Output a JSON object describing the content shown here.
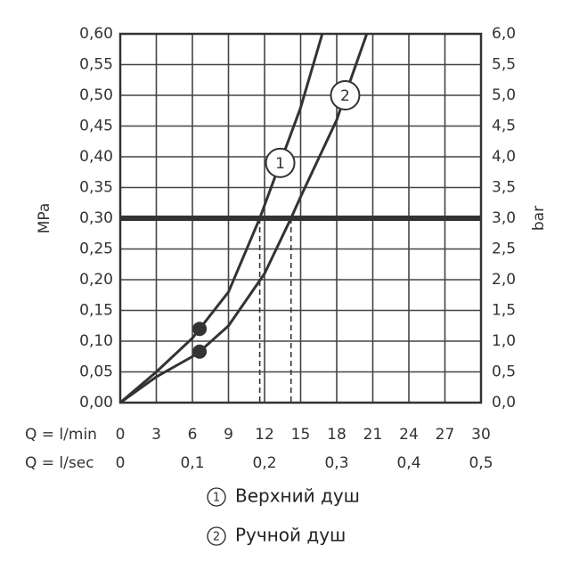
{
  "chart_data": {
    "type": "line",
    "ylabel": "MPa",
    "y2label": "bar",
    "xlabel": "Q = l/min",
    "x2label": "Q = l/sec",
    "xlim": [
      0,
      30
    ],
    "xticks": [
      0,
      3,
      6,
      9,
      12,
      15,
      18,
      21,
      24,
      27,
      30
    ],
    "x2lim": [
      0,
      0.5
    ],
    "x2ticks": [
      0,
      {
        "value": 0.1,
        "label": "0,1"
      },
      {
        "value": 0.2,
        "label": "0,2"
      },
      {
        "value": 0.3,
        "label": "0,3"
      },
      {
        "value": 0.4,
        "label": "0,4"
      },
      {
        "value": 0.5,
        "label": "0,5"
      }
    ],
    "ylim": [
      0,
      0.6
    ],
    "yticks": [
      {
        "value": 0,
        "label": "0,00"
      },
      {
        "value": 0.05,
        "label": "0,05"
      },
      {
        "value": 0.1,
        "label": "0,10"
      },
      {
        "value": 0.15,
        "label": "0,15"
      },
      {
        "value": 0.2,
        "label": "0,20"
      },
      {
        "value": 0.25,
        "label": "0,25"
      },
      {
        "value": 0.3,
        "label": "0,30"
      },
      {
        "value": 0.35,
        "label": "0,35"
      },
      {
        "value": 0.4,
        "label": "0,40"
      },
      {
        "value": 0.45,
        "label": "0,45"
      },
      {
        "value": 0.5,
        "label": "0,50"
      },
      {
        "value": 0.55,
        "label": "0,55"
      },
      {
        "value": 0.6,
        "label": "0,60"
      }
    ],
    "y2lim": [
      0,
      6
    ],
    "y2ticks": [
      {
        "value": 0,
        "label": "0,0"
      },
      {
        "value": 0.5,
        "label": "0,5"
      },
      {
        "value": 1,
        "label": "1,0"
      },
      {
        "value": 1.5,
        "label": "1,5"
      },
      {
        "value": 2,
        "label": "2,0"
      },
      {
        "value": 2.5,
        "label": "2,5"
      },
      {
        "value": 3,
        "label": "3,0"
      },
      {
        "value": 3.5,
        "label": "3,5"
      },
      {
        "value": 4,
        "label": "4,0"
      },
      {
        "value": 4.5,
        "label": "4,5"
      },
      {
        "value": 5,
        "label": "5,0"
      },
      {
        "value": 5.5,
        "label": "5,5"
      },
      {
        "value": 6,
        "label": "6,0"
      }
    ],
    "grid": true,
    "color": "#333333",
    "reference_y": 0.3,
    "reference_x": [
      11.6,
      14.2
    ],
    "points": {
      "x": [
        6.6,
        6.6
      ],
      "y": [
        0.12,
        0.083
      ]
    },
    "series": [
      {
        "name": "Верхний душ",
        "label": "1",
        "label_at": {
          "x": 13.3,
          "y": 0.39
        },
        "x": [
          0,
          3,
          6,
          6.6,
          9,
          11.6,
          13.3,
          15,
          16.8
        ],
        "values": [
          0,
          0.05,
          0.105,
          0.12,
          0.18,
          0.3,
          0.39,
          0.48,
          0.6
        ]
      },
      {
        "name": "Ручной душ",
        "label": "2",
        "label_at": {
          "x": 18.7,
          "y": 0.5
        },
        "x": [
          0,
          3,
          6,
          6.6,
          9,
          12,
          14.2,
          15,
          18,
          18.7,
          20.5
        ],
        "values": [
          0,
          0.042,
          0.075,
          0.083,
          0.125,
          0.21,
          0.3,
          0.335,
          0.46,
          0.5,
          0.6
        ]
      }
    ]
  }
}
